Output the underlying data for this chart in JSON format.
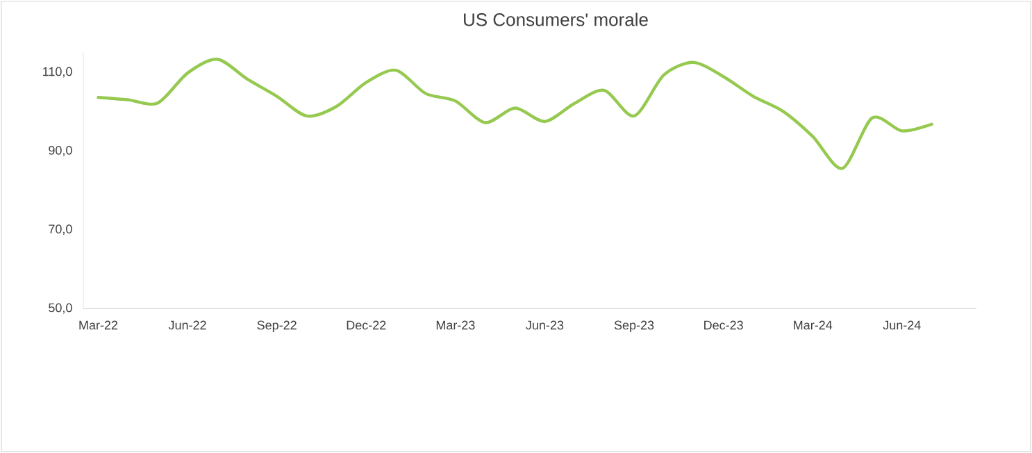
{
  "chart_data": {
    "type": "line",
    "title": "US Consumers' morale",
    "categories": [
      "Mar-22",
      null,
      null,
      "Jun-22",
      null,
      null,
      "Sep-22",
      null,
      null,
      "Dec-22",
      null,
      null,
      "Mar-23",
      null,
      null,
      "Jun-23",
      null,
      null,
      "Sep-23",
      null,
      null,
      "Dec-23",
      null,
      null,
      "Mar-24",
      null,
      null,
      "Jun-24",
      null,
      null
    ],
    "series": [
      {
        "color": "#95c94f",
        "values": [
          103.6,
          103.0,
          102.2,
          109.8,
          113.3,
          108.3,
          103.9,
          98.9,
          101.3,
          107.4,
          110.5,
          104.6,
          102.7,
          97.2,
          100.9,
          97.5,
          102.1,
          105.4,
          98.9,
          109.3,
          112.5,
          108.9,
          103.9,
          100.1,
          93.7,
          85.6,
          98.4,
          95.1,
          96.8,
          null
        ]
      }
    ],
    "ylim": [
      50,
      115
    ],
    "yticks": [
      {
        "value": 50,
        "label": "50,0"
      },
      {
        "value": 70,
        "label": "70,0"
      },
      {
        "value": 90,
        "label": "90,0"
      },
      {
        "value": 110,
        "label": "110,0"
      }
    ],
    "grid": false,
    "legend": false,
    "marker": "none",
    "line_style": "solid"
  }
}
